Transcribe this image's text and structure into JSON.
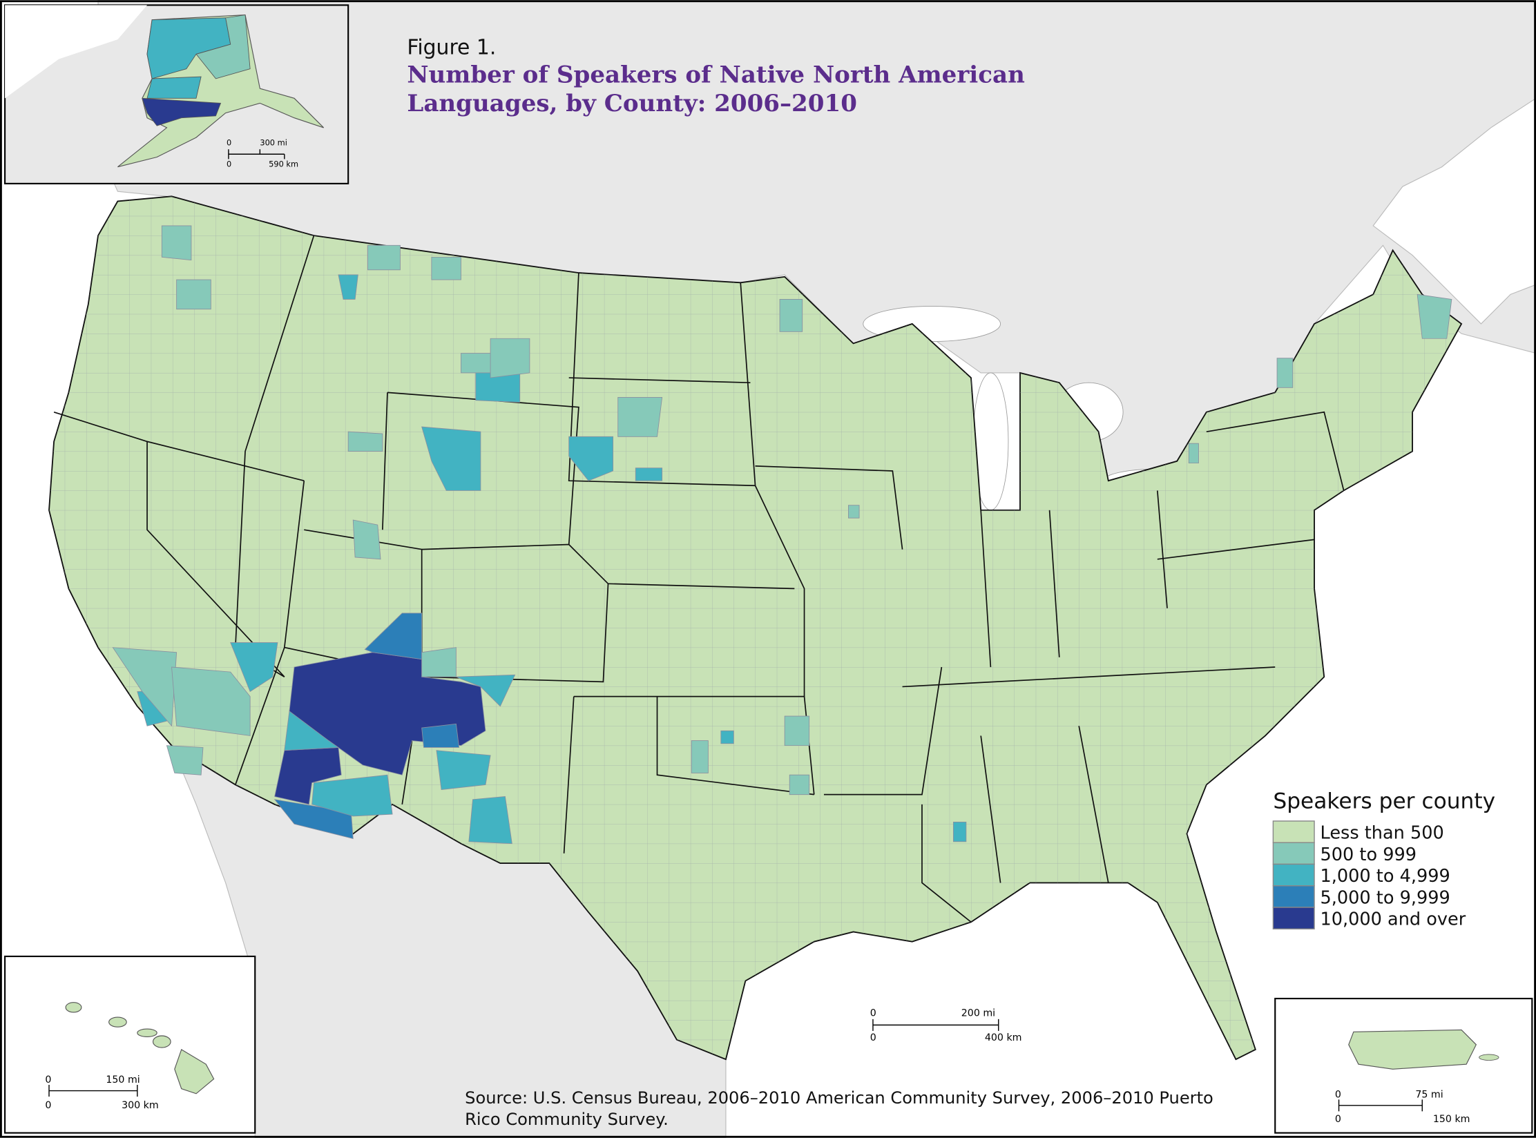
{
  "figure_label": "Figure 1.",
  "title_line1": "Number of Speakers of Native North American",
  "title_line2": "Languages, by County: 2006–2010",
  "colors": {
    "title": "#5b2d8c",
    "ocean": "#ffffff",
    "other_land": "#e8e8e8",
    "class_1": "#c8e2b6",
    "class_2": "#86c9b9",
    "class_3": "#42b3c2",
    "class_4": "#2c7fb8",
    "class_5": "#293a8f"
  },
  "legend": {
    "title": "Speakers per county",
    "items": [
      {
        "label": "Less than 500",
        "color": "#c8e2b6"
      },
      {
        "label": "500 to 999",
        "color": "#86c9b9"
      },
      {
        "label": "1,000 to 4,999",
        "color": "#42b3c2"
      },
      {
        "label": "5,000 to 9,999",
        "color": "#2c7fb8"
      },
      {
        "label": "10,000 and over",
        "color": "#293a8f"
      }
    ]
  },
  "scale_bars": {
    "alaska": {
      "zero_top": "0",
      "mi": "300 mi",
      "zero_bottom": "0",
      "km": "590 km"
    },
    "main": {
      "zero_top": "0",
      "mi": "200 mi",
      "zero_bottom": "0",
      "km": "400 km"
    },
    "hawaii": {
      "zero_top": "0",
      "mi": "150 mi",
      "zero_bottom": "0",
      "km": "300 km"
    },
    "puerto_rico": {
      "zero_top": "0",
      "mi": "75 mi",
      "zero_bottom": "0",
      "km": "150 km"
    }
  },
  "source_line1": "Source: U.S. Census Bureau, 2006–2010 American Community Survey, 2006–2010 Puerto",
  "source_line2": "Rico Community Survey."
}
